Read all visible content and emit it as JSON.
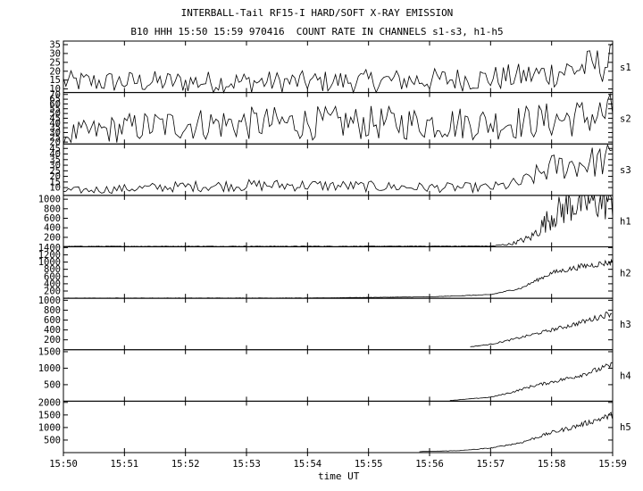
{
  "chart_data": {
    "type": "line",
    "title": "INTERBALL-Tail RF15-I HARD/SOFT X-RAY EMISSION",
    "subtitle": "B10 HHH 15:50 15:59 970416  COUNT RATE IN CHANNELS s1-s3, h1-h5",
    "xlabel": "time UT",
    "x_ticks": [
      "15:50",
      "15:51",
      "15:52",
      "15:53",
      "15:54",
      "15:55",
      "15:56",
      "15:57",
      "15:58",
      "15:59"
    ],
    "xlim": [
      "15:50",
      "15:59"
    ],
    "grid": false,
    "panels": [
      {
        "name": "s1",
        "ylim": [
          8,
          37
        ],
        "yticks": [
          10,
          15,
          20,
          25,
          30,
          35
        ],
        "x": [
          "15:50",
          "15:52",
          "15:54",
          "15:56",
          "15:57",
          "15:57:30",
          "15:58",
          "15:58:30",
          "15:59"
        ],
        "values": [
          14,
          14,
          14,
          15,
          16,
          17,
          19,
          22,
          25
        ]
      },
      {
        "name": "s2",
        "ylim": [
          18,
          72
        ],
        "yticks": [
          20,
          25,
          30,
          35,
          40,
          45,
          50,
          55,
          60,
          65,
          70
        ],
        "x": [
          "15:50",
          "15:51",
          "15:52",
          "15:54",
          "15:56",
          "15:57",
          "15:57:30",
          "15:58",
          "15:58:30",
          "15:59"
        ],
        "values": [
          27,
          35,
          39,
          40,
          40,
          40,
          41,
          43,
          46,
          50
        ]
      },
      {
        "name": "s3",
        "ylim": [
          3,
          49
        ],
        "yticks": [
          10,
          15,
          20,
          25,
          30,
          35,
          40,
          45
        ],
        "x": [
          "15:50",
          "15:51",
          "15:52",
          "15:53",
          "15:54",
          "15:55",
          "15:56",
          "15:57",
          "15:57:30",
          "15:58",
          "15:58:30",
          "15:59"
        ],
        "values": [
          7,
          9,
          11,
          12,
          12,
          11,
          10,
          10,
          14,
          28,
          32,
          35
        ]
      },
      {
        "name": "h1",
        "ylim": [
          0,
          1080
        ],
        "yticks": [
          200,
          400,
          600,
          800,
          1000
        ],
        "x": [
          "15:50",
          "15:55",
          "15:57",
          "15:57:20",
          "15:57:40",
          "15:58",
          "15:58:20",
          "15:58:40",
          "15:59"
        ],
        "values": [
          10,
          12,
          15,
          60,
          200,
          650,
          900,
          960,
          980
        ]
      },
      {
        "name": "h2",
        "ylim": [
          0,
          1420
        ],
        "yticks": [
          200,
          400,
          600,
          800,
          1000,
          1200,
          1400
        ],
        "x": [
          "15:50",
          "15:54",
          "15:56",
          "15:57",
          "15:57:30",
          "15:58",
          "15:58:30",
          "15:59"
        ],
        "values": [
          5,
          8,
          40,
          100,
          280,
          700,
          880,
          1000
        ]
      },
      {
        "name": "h3",
        "ylim": [
          0,
          1040
        ],
        "yticks": [
          200,
          400,
          600,
          800,
          1000
        ],
        "x": [
          "15:56:40",
          "15:57",
          "15:57:20",
          "15:57:40",
          "15:58",
          "15:58:20",
          "15:58:40",
          "15:59"
        ],
        "values": [
          60,
          110,
          200,
          300,
          400,
          500,
          620,
          750
        ]
      },
      {
        "name": "h4",
        "ylim": [
          0,
          1560
        ],
        "yticks": [
          500,
          1000,
          1500
        ],
        "x": [
          "15:56:20",
          "15:57",
          "15:57:20",
          "15:57:40",
          "15:58",
          "15:58:20",
          "15:58:40",
          "15:59"
        ],
        "values": [
          20,
          120,
          260,
          450,
          580,
          720,
          900,
          1100
        ]
      },
      {
        "name": "h5",
        "ylim": [
          0,
          2050
        ],
        "yticks": [
          500,
          1000,
          1500,
          2000
        ],
        "x": [
          "15:55:50",
          "15:56:30",
          "15:57",
          "15:57:30",
          "15:58",
          "15:58:20",
          "15:58:40",
          "15:59"
        ],
        "values": [
          40,
          80,
          180,
          400,
          800,
          1000,
          1250,
          1500
        ]
      }
    ]
  }
}
